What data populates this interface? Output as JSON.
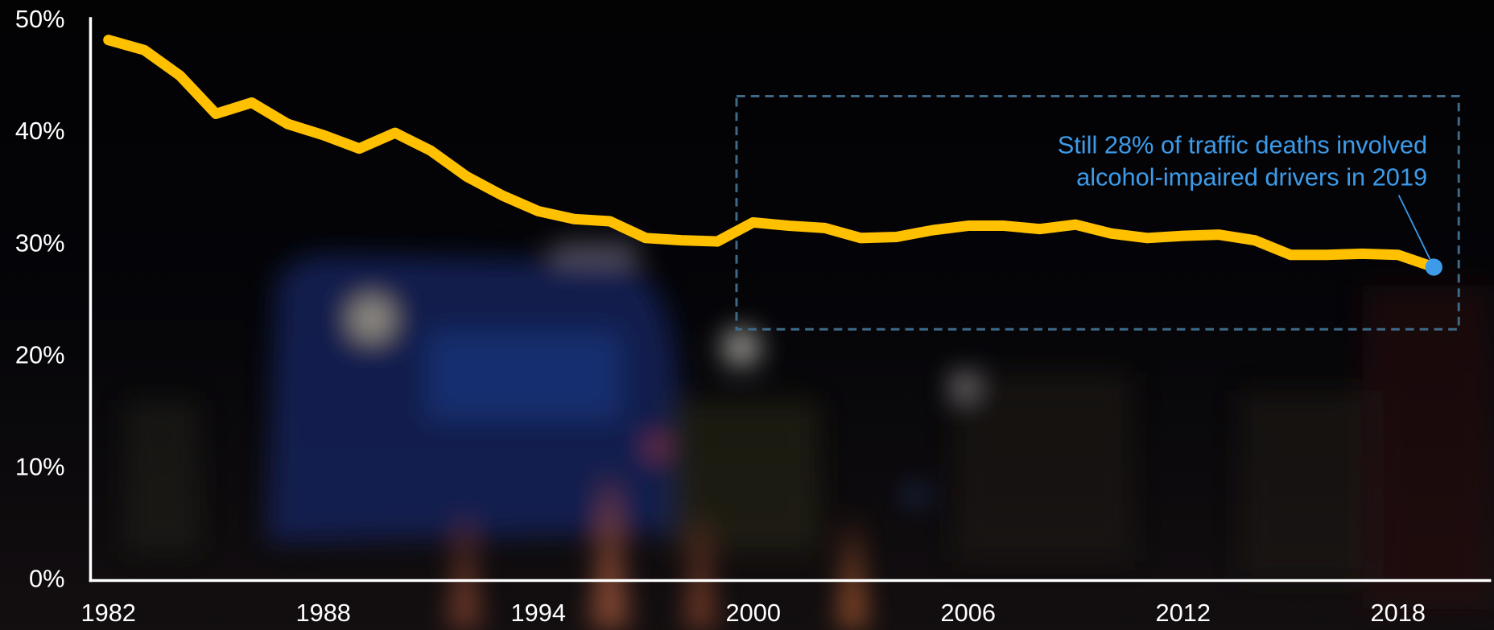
{
  "chart_data": {
    "type": "line",
    "x": [
      1982,
      1983,
      1984,
      1985,
      1986,
      1987,
      1988,
      1989,
      1990,
      1991,
      1992,
      1993,
      1994,
      1995,
      1996,
      1997,
      1998,
      1999,
      2000,
      2001,
      2002,
      2003,
      2004,
      2005,
      2006,
      2007,
      2008,
      2009,
      2010,
      2011,
      2012,
      2013,
      2014,
      2015,
      2016,
      2017,
      2018,
      2019
    ],
    "values": [
      48.3,
      47.4,
      45.1,
      41.7,
      42.7,
      40.8,
      39.8,
      38.6,
      40.0,
      38.4,
      36.1,
      34.4,
      33.0,
      32.3,
      32.1,
      30.6,
      30.4,
      30.3,
      32.0,
      31.7,
      31.5,
      30.6,
      30.7,
      31.3,
      31.7,
      31.7,
      31.4,
      31.8,
      31.0,
      30.6,
      30.8,
      30.9,
      30.4,
      29.1,
      29.1,
      29.2,
      29.1,
      28
    ],
    "color": "#ffc000",
    "xlim": [
      1981.5,
      2020.6
    ],
    "xticks": [
      1982,
      1988,
      1994,
      2000,
      2006,
      2012,
      2018
    ],
    "ylim": [
      0,
      50
    ],
    "yticks": [
      {
        "value": 0,
        "label": "0%"
      },
      {
        "value": 10,
        "label": "10%"
      },
      {
        "value": 20,
        "label": "20%"
      },
      {
        "value": 30,
        "label": "30%"
      },
      {
        "value": 40,
        "label": "40%"
      },
      {
        "value": 50,
        "label": "50%"
      }
    ],
    "grid": false,
    "annotation": {
      "lines": [
        "Still 28% of traffic deaths involved",
        "alcohol-impaired drivers in 2019"
      ],
      "color": "#3d9be9"
    }
  }
}
